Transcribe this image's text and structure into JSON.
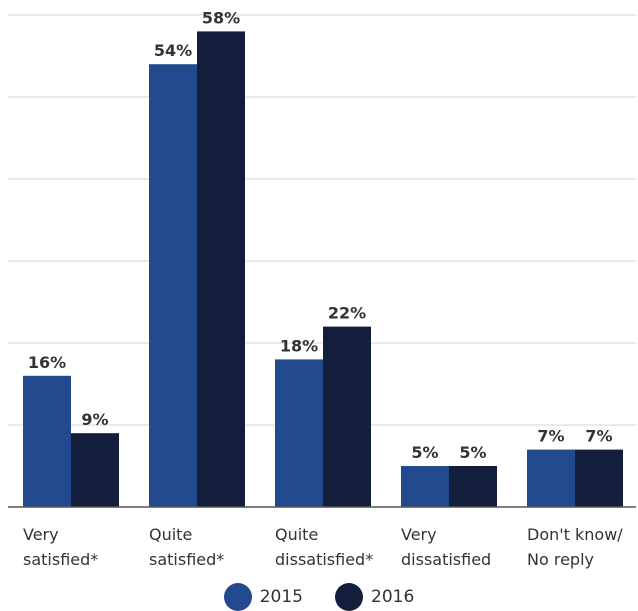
{
  "chart_data": {
    "type": "bar",
    "categories": [
      [
        "Very",
        "satisfied*"
      ],
      [
        "Quite",
        "satisfied*"
      ],
      [
        "Quite",
        "dissatisfied*"
      ],
      [
        "Very",
        "dissatisfied"
      ],
      [
        "Don't know/",
        "No reply"
      ]
    ],
    "series": [
      {
        "name": "2015",
        "color": "#234a8f",
        "values": [
          16,
          54,
          18,
          5,
          7
        ],
        "labels": [
          "16%",
          "54%",
          "18%",
          "5%",
          "7%"
        ]
      },
      {
        "name": "2016",
        "color": "#121e3c",
        "values": [
          9,
          58,
          22,
          5,
          7
        ],
        "labels": [
          "9%",
          "58%",
          "22%",
          "5%",
          "7%"
        ]
      }
    ],
    "ylim": [
      0,
      60
    ],
    "grid": true,
    "legend_placement": "bottom-center",
    "unit": "%"
  }
}
